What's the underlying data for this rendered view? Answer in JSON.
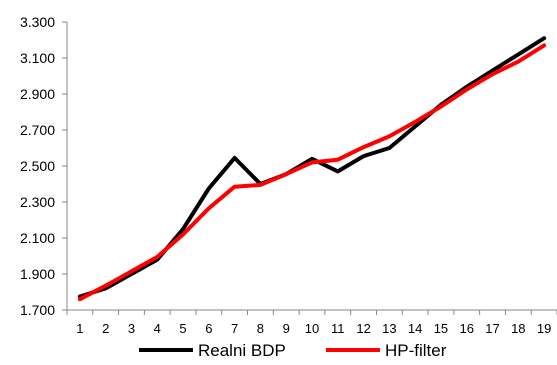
{
  "chart_data": {
    "type": "line",
    "x": [
      1,
      2,
      3,
      4,
      5,
      6,
      7,
      8,
      9,
      10,
      11,
      12,
      13,
      14,
      15,
      16,
      17,
      18,
      19
    ],
    "series": [
      {
        "name": "Realni BDP",
        "color": "#000000",
        "values": [
          1775,
          1820,
          1900,
          1980,
          2150,
          2375,
          2545,
          2400,
          2455,
          2540,
          2470,
          2555,
          2600,
          2720,
          2840,
          2940,
          3030,
          3120,
          3210
        ]
      },
      {
        "name": "HP-filter",
        "color": "#ff0000",
        "values": [
          1760,
          1835,
          1915,
          1995,
          2120,
          2265,
          2385,
          2395,
          2455,
          2520,
          2535,
          2605,
          2665,
          2745,
          2830,
          2925,
          3010,
          3080,
          3170
        ]
      }
    ],
    "ylim": [
      1700,
      3300
    ],
    "yticks": [
      {
        "value": 1700,
        "label": "1.700"
      },
      {
        "value": 1900,
        "label": "1.900"
      },
      {
        "value": 2100,
        "label": "2.100"
      },
      {
        "value": 2300,
        "label": "2.300"
      },
      {
        "value": 2500,
        "label": "2.500"
      },
      {
        "value": 2700,
        "label": "2.700"
      },
      {
        "value": 2900,
        "label": "2.900"
      },
      {
        "value": 3100,
        "label": "3.100"
      },
      {
        "value": 3300,
        "label": "3.300"
      }
    ],
    "xticks": [
      "1",
      "2",
      "3",
      "4",
      "5",
      "6",
      "7",
      "8",
      "9",
      "10",
      "11",
      "12",
      "13",
      "14",
      "15",
      "16",
      "17",
      "18",
      "19"
    ],
    "grid": false,
    "legend_position": "bottom",
    "title": "",
    "xlabel": "",
    "ylabel": ""
  }
}
